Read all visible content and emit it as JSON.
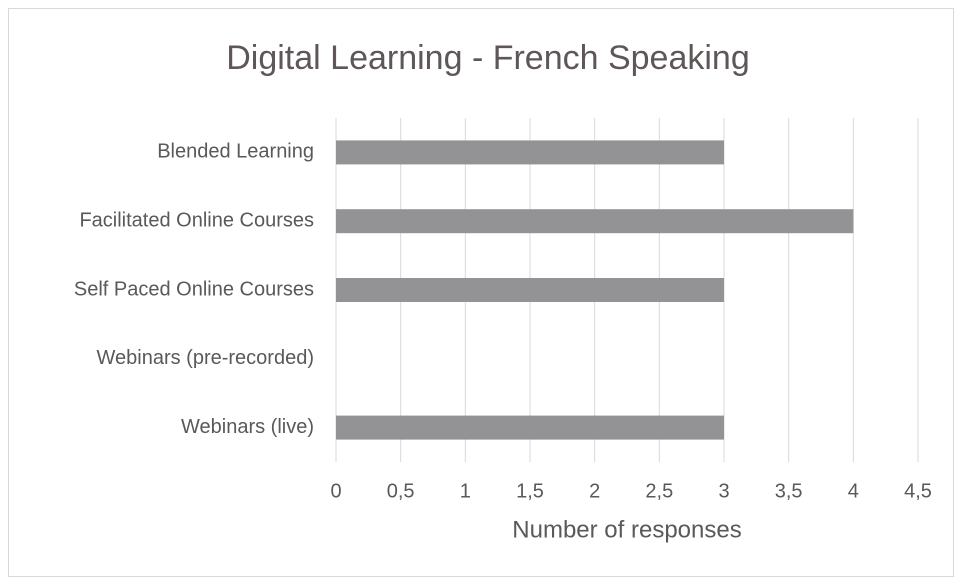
{
  "chart_data": {
    "type": "hbar",
    "title": "Digital Learning - French Speaking",
    "xlabel": "Number of responses",
    "categories": [
      "Blended Learning",
      "Facilitated Online Courses",
      "Self Paced Online Courses",
      "Webinars (pre-recorded)",
      "Webinars (live)"
    ],
    "values": [
      3,
      4,
      3,
      0,
      3
    ],
    "color": "#939395",
    "xlim": [
      0,
      4.5
    ],
    "xticks": [
      0,
      {
        "value": 0.5,
        "label": "0,5"
      },
      1,
      {
        "value": 1.5,
        "label": "1,5"
      },
      2,
      {
        "value": 2.5,
        "label": "2,5"
      },
      3,
      {
        "value": 3.5,
        "label": "3,5"
      },
      4,
      {
        "value": 4.5,
        "label": "4,5"
      }
    ],
    "grid": true
  }
}
